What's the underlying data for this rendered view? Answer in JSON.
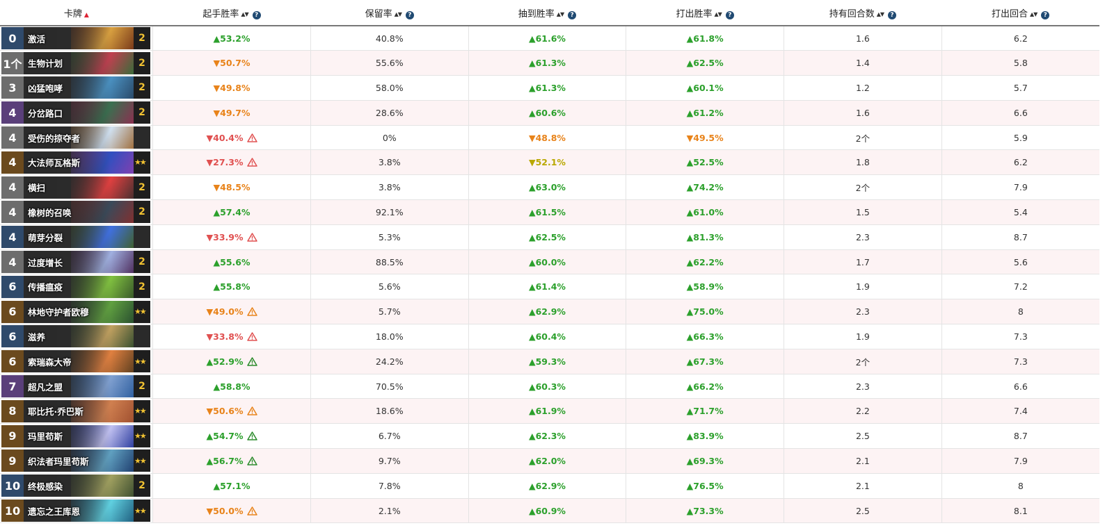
{
  "headers": {
    "card": "卡牌",
    "mulligan": "起手胜率",
    "kept": "保留率",
    "drawn": "抽到胜率",
    "played": "打出胜率",
    "turns_held": "持有回合数",
    "turn_played": "打出回合"
  },
  "icons": {
    "sort": "sort-icon",
    "sort_active": "sort-ascending-icon",
    "help": "help-icon",
    "warning": "warning-icon"
  },
  "colors": {
    "up": "#2ca02c",
    "orange": "#e8831a",
    "red": "#e05050",
    "yellow": "#b9a800",
    "help": "#204a72"
  },
  "rows": [
    {
      "cost": "0",
      "name": "激活",
      "count": "2",
      "mull": "▲53.2%",
      "mc": "up",
      "mw": "",
      "kept": "40.8%",
      "drawn": "▲61.6%",
      "dc": "up",
      "played": "▲61.8%",
      "pc": "up",
      "held": "1.6",
      "turn": "6.2",
      "costbg": "#2f4a6b",
      "a1": "#7a3a1a",
      "a2": "#d8a040"
    },
    {
      "cost": "1个",
      "name": "生物计划",
      "count": "2",
      "mull": "▼50.7%",
      "mc": "down-orange",
      "mw": "",
      "kept": "55.6%",
      "drawn": "▲61.3%",
      "dc": "up",
      "played": "▲62.5%",
      "pc": "up",
      "held": "1.4",
      "turn": "5.8",
      "costbg": "#6d6d6d",
      "a1": "#3a6b3a",
      "a2": "#c04050"
    },
    {
      "cost": "3",
      "name": "凶猛咆哮",
      "count": "2",
      "mull": "▼49.8%",
      "mc": "down-orange",
      "mw": "",
      "kept": "58.0%",
      "drawn": "▲61.3%",
      "dc": "up",
      "played": "▲60.1%",
      "pc": "up",
      "held": "1.2",
      "turn": "5.7",
      "costbg": "#6d6d6d",
      "a1": "#2a4a6a",
      "a2": "#4a90c0"
    },
    {
      "cost": "4",
      "name": "分岔路口",
      "count": "2",
      "mull": "▼49.7%",
      "mc": "down-orange",
      "mw": "",
      "kept": "28.6%",
      "drawn": "▲60.6%",
      "dc": "up",
      "played": "▲61.2%",
      "pc": "up",
      "held": "1.6",
      "turn": "6.6",
      "costbg": "#5a3f7a",
      "a1": "#8a3050",
      "a2": "#3a7050"
    },
    {
      "cost": "4",
      "name": "受伤的掠夺者",
      "count": "",
      "mull": "▼40.4%",
      "mc": "down-red",
      "mw": "red",
      "kept": "0%",
      "drawn": "▼48.8%",
      "dc": "down-orange",
      "played": "▼49.5%",
      "pc": "down-orange",
      "held": "2个",
      "turn": "5.9",
      "costbg": "#6d6d6d",
      "a1": "#a07040",
      "a2": "#d0e0f0"
    },
    {
      "cost": "4",
      "name": "大法师瓦格斯",
      "count": "★★",
      "mull": "▼27.3%",
      "mc": "down-red",
      "mw": "red",
      "kept": "3.8%",
      "drawn": "▼52.1%",
      "dc": "down-yellow",
      "played": "▲52.5%",
      "pc": "up",
      "held": "1.8",
      "turn": "6.2",
      "costbg": "#6b4a1e",
      "a1": "#8040b0",
      "a2": "#3050c0"
    },
    {
      "cost": "4",
      "name": "横扫",
      "count": "2",
      "mull": "▼48.5%",
      "mc": "down-orange",
      "mw": "",
      "kept": "3.8%",
      "drawn": "▲63.0%",
      "dc": "up",
      "played": "▲74.2%",
      "pc": "up",
      "held": "2个",
      "turn": "7.9",
      "costbg": "#6d6d6d",
      "a1": "#4a3030",
      "a2": "#e04040"
    },
    {
      "cost": "4",
      "name": "橡树的召唤",
      "count": "2",
      "mull": "▲57.4%",
      "mc": "up",
      "mw": "",
      "kept": "92.1%",
      "drawn": "▲61.5%",
      "dc": "up",
      "played": "▲61.0%",
      "pc": "up",
      "held": "1.5",
      "turn": "5.4",
      "costbg": "#6d6d6d",
      "a1": "#803030",
      "a2": "#3a4a5a"
    },
    {
      "cost": "4",
      "name": "萌芽分裂",
      "count": "",
      "mull": "▼33.9%",
      "mc": "down-red",
      "mw": "red",
      "kept": "5.3%",
      "drawn": "▲62.5%",
      "dc": "up",
      "played": "▲81.3%",
      "pc": "up",
      "held": "2.3",
      "turn": "8.7",
      "costbg": "#2f4a6b",
      "a1": "#406030",
      "a2": "#4070e0"
    },
    {
      "cost": "4",
      "name": "过度增长",
      "count": "2",
      "mull": "▲55.6%",
      "mc": "up",
      "mw": "",
      "kept": "88.5%",
      "drawn": "▲60.0%",
      "dc": "up",
      "played": "▲62.2%",
      "pc": "up",
      "held": "1.7",
      "turn": "5.6",
      "costbg": "#6d6d6d",
      "a1": "#503060",
      "a2": "#a0b0e0"
    },
    {
      "cost": "6",
      "name": "传播瘟疫",
      "count": "2",
      "mull": "▲55.8%",
      "mc": "up",
      "mw": "",
      "kept": "5.6%",
      "drawn": "▲61.4%",
      "dc": "up",
      "played": "▲58.9%",
      "pc": "up",
      "held": "1.9",
      "turn": "7.2",
      "costbg": "#2f4a6b",
      "a1": "#3a5a2a",
      "a2": "#80c040"
    },
    {
      "cost": "6",
      "name": "林地守护者欧穆",
      "count": "★★",
      "mull": "▼49.0%",
      "mc": "down-orange",
      "mw": "orange",
      "kept": "5.7%",
      "drawn": "▲62.9%",
      "dc": "up",
      "played": "▲75.0%",
      "pc": "up",
      "held": "2.3",
      "turn": "8",
      "costbg": "#6b4a1e",
      "a1": "#2a5030",
      "a2": "#60a040"
    },
    {
      "cost": "6",
      "name": "滋养",
      "count": "",
      "mull": "▼33.8%",
      "mc": "down-red",
      "mw": "red",
      "kept": "18.0%",
      "drawn": "▲60.4%",
      "dc": "up",
      "played": "▲66.3%",
      "pc": "up",
      "held": "1.9",
      "turn": "7.3",
      "costbg": "#2f4a6b",
      "a1": "#3a5030",
      "a2": "#c0a060"
    },
    {
      "cost": "6",
      "name": "索瑞森大帝",
      "count": "★★",
      "mull": "▲52.9%",
      "mc": "up",
      "mw": "green",
      "kept": "24.2%",
      "drawn": "▲59.3%",
      "dc": "up",
      "played": "▲67.3%",
      "pc": "up",
      "held": "2个",
      "turn": "7.3",
      "costbg": "#6b4a1e",
      "a1": "#604020",
      "a2": "#e08040"
    },
    {
      "cost": "7",
      "name": "超凡之盟",
      "count": "2",
      "mull": "▲58.8%",
      "mc": "up",
      "mw": "",
      "kept": "70.5%",
      "drawn": "▲60.3%",
      "dc": "up",
      "played": "▲66.2%",
      "pc": "up",
      "held": "2.3",
      "turn": "6.6",
      "costbg": "#5a3f7a",
      "a1": "#3060a0",
      "a2": "#80a0d0"
    },
    {
      "cost": "8",
      "name": "耶比托·乔巴斯",
      "count": "★★",
      "mull": "▼50.6%",
      "mc": "down-orange",
      "mw": "orange",
      "kept": "18.6%",
      "drawn": "▲61.9%",
      "dc": "up",
      "played": "▲71.7%",
      "pc": "up",
      "held": "2.2",
      "turn": "7.4",
      "costbg": "#6b4a1e",
      "a1": "#a05030",
      "a2": "#d08050"
    },
    {
      "cost": "9",
      "name": "玛里苟斯",
      "count": "★★",
      "mull": "▲54.7%",
      "mc": "up",
      "mw": "green",
      "kept": "6.7%",
      "drawn": "▲62.3%",
      "dc": "up",
      "played": "▲83.9%",
      "pc": "up",
      "held": "2.5",
      "turn": "8.7",
      "costbg": "#6b4a1e",
      "a1": "#3040a0",
      "a2": "#c0c0f0"
    },
    {
      "cost": "9",
      "name": "织法者玛里苟斯",
      "count": "★★",
      "mull": "▲56.7%",
      "mc": "up",
      "mw": "green",
      "kept": "9.7%",
      "drawn": "▲62.0%",
      "dc": "up",
      "played": "▲69.3%",
      "pc": "up",
      "held": "2.1",
      "turn": "7.9",
      "costbg": "#6b4a1e",
      "a1": "#204070",
      "a2": "#60a0c0"
    },
    {
      "cost": "10",
      "name": "终极感染",
      "count": "2",
      "mull": "▲57.1%",
      "mc": "up",
      "mw": "",
      "kept": "7.8%",
      "drawn": "▲62.9%",
      "dc": "up",
      "played": "▲76.5%",
      "pc": "up",
      "held": "2.1",
      "turn": "8",
      "costbg": "#2f4a6b",
      "a1": "#405030",
      "a2": "#a0a060"
    },
    {
      "cost": "10",
      "name": "遗忘之王库恩",
      "count": "★★",
      "mull": "▼50.0%",
      "mc": "down-orange",
      "mw": "orange",
      "kept": "2.1%",
      "drawn": "▲60.9%",
      "dc": "up",
      "played": "▲73.3%",
      "pc": "up",
      "held": "2.5",
      "turn": "8.1",
      "costbg": "#6b4a1e",
      "a1": "#206080",
      "a2": "#60d0e0"
    }
  ]
}
